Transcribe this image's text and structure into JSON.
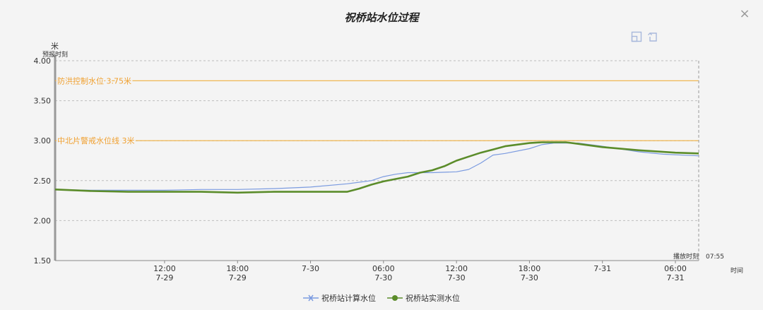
{
  "title": "祝桥站水位过程",
  "toolbar": {
    "restore": "restore-icon",
    "reset": "reset-icon"
  },
  "close_icon": "×",
  "chart_data": {
    "type": "line",
    "title": "祝桥站水位过程",
    "ylabel": "米",
    "ylabel_note": "预报时刻",
    "xlabel": "时间",
    "ylim": [
      1.5,
      4.0
    ],
    "yticks": [
      "4.00",
      "3.50",
      "3.00",
      "2.50",
      "2.00",
      "1.50"
    ],
    "xlim": [
      "2021-07-29 03:00",
      "2021-07-31 07:55"
    ],
    "xticks": [
      {
        "t": "2021-07-29 12:00",
        "line1": "12:00",
        "line2": "7-29"
      },
      {
        "t": "2021-07-29 18:00",
        "line1": "18:00",
        "line2": "7-29"
      },
      {
        "t": "2021-07-30 00:00",
        "line1": "7-30",
        "line2": ""
      },
      {
        "t": "2021-07-30 06:00",
        "line1": "06:00",
        "line2": "7-30"
      },
      {
        "t": "2021-07-30 12:00",
        "line1": "12:00",
        "line2": "7-30"
      },
      {
        "t": "2021-07-30 18:00",
        "line1": "18:00",
        "line2": "7-30"
      },
      {
        "t": "2021-07-31 00:00",
        "line1": "7-31",
        "line2": ""
      },
      {
        "t": "2021-07-31 06:00",
        "line1": "06:00",
        "line2": "7-31"
      }
    ],
    "grid": true,
    "legend_position": "bottom",
    "reference_lines": [
      {
        "value": 3.75,
        "label": "防洪控制水位 3.75米",
        "color": "#f0b040"
      },
      {
        "value": 3.0,
        "label": "中北片警戒水位线 3米",
        "color": "#f0b040"
      }
    ],
    "marker": {
      "t": "2021-07-31 07:55",
      "label": "播放时刻",
      "time": "07:55"
    },
    "series": [
      {
        "name": "祝桥站计算水位",
        "color": "#7b9be0",
        "marker": "x",
        "points": [
          [
            "2021-07-29 03:00",
            2.39
          ],
          [
            "2021-07-29 06:00",
            2.38
          ],
          [
            "2021-07-29 09:00",
            2.38
          ],
          [
            "2021-07-29 12:00",
            2.38
          ],
          [
            "2021-07-29 15:00",
            2.39
          ],
          [
            "2021-07-29 18:00",
            2.39
          ],
          [
            "2021-07-29 21:00",
            2.4
          ],
          [
            "2021-07-30 00:00",
            2.42
          ],
          [
            "2021-07-30 03:00",
            2.46
          ],
          [
            "2021-07-30 05:00",
            2.5
          ],
          [
            "2021-07-30 06:00",
            2.55
          ],
          [
            "2021-07-30 07:00",
            2.58
          ],
          [
            "2021-07-30 08:00",
            2.6
          ],
          [
            "2021-07-30 10:00",
            2.6
          ],
          [
            "2021-07-30 12:00",
            2.61
          ],
          [
            "2021-07-30 13:00",
            2.64
          ],
          [
            "2021-07-30 14:00",
            2.72
          ],
          [
            "2021-07-30 15:00",
            2.82
          ],
          [
            "2021-07-30 16:00",
            2.84
          ],
          [
            "2021-07-30 18:00",
            2.9
          ],
          [
            "2021-07-30 19:00",
            2.95
          ],
          [
            "2021-07-30 20:00",
            2.97
          ],
          [
            "2021-07-30 22:00",
            2.97
          ],
          [
            "2021-07-31 00:00",
            2.93
          ],
          [
            "2021-07-31 03:00",
            2.86
          ],
          [
            "2021-07-31 05:00",
            2.83
          ],
          [
            "2021-07-31 07:55",
            2.81
          ]
        ]
      },
      {
        "name": "祝桥站实测水位",
        "color": "#5b8c2a",
        "marker": "circle",
        "points": [
          [
            "2021-07-29 03:00",
            2.39
          ],
          [
            "2021-07-29 06:00",
            2.37
          ],
          [
            "2021-07-29 09:00",
            2.36
          ],
          [
            "2021-07-29 12:00",
            2.36
          ],
          [
            "2021-07-29 15:00",
            2.36
          ],
          [
            "2021-07-29 18:00",
            2.35
          ],
          [
            "2021-07-29 21:00",
            2.36
          ],
          [
            "2021-07-30 00:00",
            2.36
          ],
          [
            "2021-07-30 03:00",
            2.36
          ],
          [
            "2021-07-30 04:00",
            2.4
          ],
          [
            "2021-07-30 05:00",
            2.45
          ],
          [
            "2021-07-30 06:00",
            2.49
          ],
          [
            "2021-07-30 07:00",
            2.52
          ],
          [
            "2021-07-30 08:00",
            2.55
          ],
          [
            "2021-07-30 09:00",
            2.6
          ],
          [
            "2021-07-30 10:00",
            2.63
          ],
          [
            "2021-07-30 11:00",
            2.68
          ],
          [
            "2021-07-30 12:00",
            2.75
          ],
          [
            "2021-07-30 13:00",
            2.8
          ],
          [
            "2021-07-30 14:00",
            2.85
          ],
          [
            "2021-07-30 15:00",
            2.89
          ],
          [
            "2021-07-30 16:00",
            2.93
          ],
          [
            "2021-07-30 18:00",
            2.97
          ],
          [
            "2021-07-30 19:00",
            2.98
          ],
          [
            "2021-07-30 20:00",
            2.98
          ],
          [
            "2021-07-30 21:00",
            2.98
          ],
          [
            "2021-07-30 22:00",
            2.96
          ],
          [
            "2021-07-31 00:00",
            2.92
          ],
          [
            "2021-07-31 03:00",
            2.88
          ],
          [
            "2021-07-31 06:00",
            2.85
          ],
          [
            "2021-07-31 07:55",
            2.84
          ]
        ]
      }
    ]
  }
}
